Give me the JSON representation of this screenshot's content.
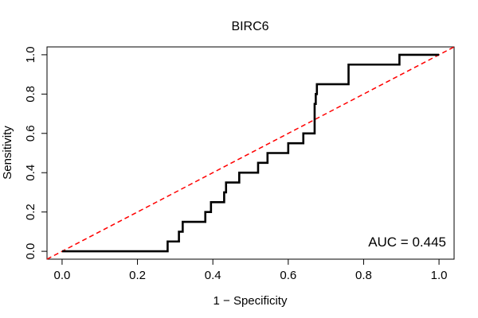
{
  "chart_data": {
    "type": "line",
    "title": "BIRC6",
    "xlabel": "1 − Specificity",
    "ylabel": "Sensitivity",
    "xlim": [
      -0.04,
      1.04
    ],
    "ylim": [
      -0.04,
      1.04
    ],
    "xticks": [
      0.0,
      0.2,
      0.4,
      0.6,
      0.8,
      1.0
    ],
    "xtick_labels": [
      "0.0",
      "0.2",
      "0.4",
      "0.6",
      "0.8",
      "1.0"
    ],
    "yticks": [
      0.0,
      0.2,
      0.4,
      0.6,
      0.8,
      1.0
    ],
    "ytick_labels": [
      "0.0",
      "0.2",
      "0.4",
      "0.6",
      "0.8",
      "1.0"
    ],
    "grid": false,
    "annotation": "AUC = 0.445",
    "series": [
      {
        "name": "ROC curve",
        "color": "#000000",
        "style": "solid",
        "x": [
          0.0,
          0.28,
          0.28,
          0.31,
          0.31,
          0.32,
          0.32,
          0.38,
          0.38,
          0.395,
          0.395,
          0.43,
          0.43,
          0.435,
          0.435,
          0.47,
          0.47,
          0.52,
          0.52,
          0.545,
          0.545,
          0.6,
          0.6,
          0.64,
          0.64,
          0.67,
          0.67,
          0.673,
          0.673,
          0.676,
          0.676,
          0.76,
          0.76,
          0.895,
          0.895,
          1.0
        ],
        "y": [
          0.0,
          0.0,
          0.05,
          0.05,
          0.1,
          0.1,
          0.15,
          0.15,
          0.2,
          0.2,
          0.25,
          0.25,
          0.3,
          0.3,
          0.35,
          0.35,
          0.4,
          0.4,
          0.45,
          0.45,
          0.5,
          0.5,
          0.55,
          0.55,
          0.6,
          0.6,
          0.75,
          0.75,
          0.8,
          0.8,
          0.85,
          0.85,
          0.95,
          0.95,
          1.0,
          1.0
        ]
      },
      {
        "name": "Reference diagonal",
        "color": "#ff0000",
        "style": "dashed",
        "x": [
          -0.04,
          1.04
        ],
        "y": [
          -0.04,
          1.04
        ]
      }
    ]
  }
}
